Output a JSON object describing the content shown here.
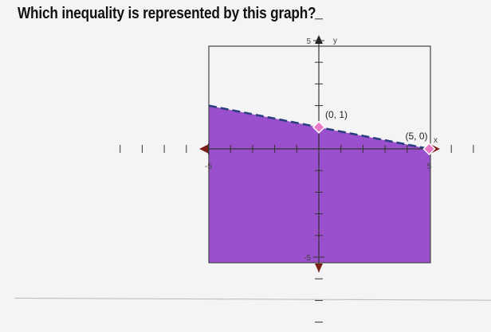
{
  "question": "Which inequality is represented by this graph?",
  "chart_data": {
    "type": "line",
    "title": "",
    "xlabel": "x",
    "ylabel": "y",
    "xlim": [
      -10,
      10
    ],
    "ylim": [
      -10,
      10
    ],
    "x_tick_labels": [
      {
        "value": -5,
        "label": "-5"
      },
      {
        "value": 5,
        "label": "5"
      }
    ],
    "y_tick_labels": [
      {
        "value": 5,
        "label": "5"
      },
      {
        "value": -5,
        "label": "-5"
      }
    ],
    "boundary": {
      "style": "dashed",
      "points": [
        [
          -10,
          3
        ],
        [
          10,
          -1
        ]
      ]
    },
    "shaded_region": "below",
    "points": [
      {
        "x": 0,
        "y": 1,
        "label": "(0, 1)"
      },
      {
        "x": 5,
        "y": 0,
        "label": "(5, 0)"
      }
    ],
    "colors": {
      "shade": "#9a50cc",
      "boundary": "#2a3f80",
      "axis_arrow": "#7a1f18",
      "point": "#e879c7",
      "frame": "#444444"
    }
  }
}
